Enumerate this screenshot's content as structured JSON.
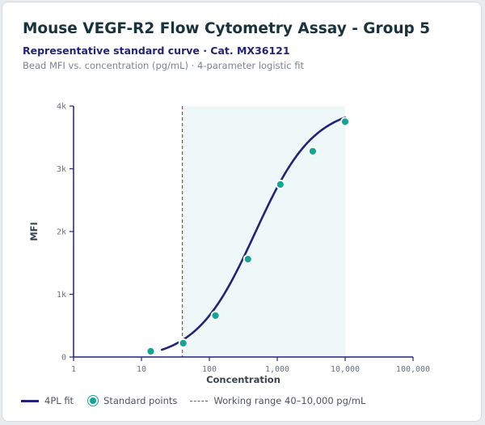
{
  "header": {
    "title": "Mouse VEGF-R2 Flow Cytometry Assay - Group 5",
    "subtitle": "Representative standard curve · Cat. MX36121",
    "caption": "Bead MFI vs. concentration (pg/mL) · 4-parameter logistic fit"
  },
  "chart_data": {
    "type": "scatter",
    "xlabel": "Concentration",
    "ylabel": "MFI",
    "x_scale": "log",
    "xlim": [
      1,
      100000
    ],
    "ylim": [
      0,
      4000
    ],
    "x_ticks": [
      1,
      10,
      100,
      1000,
      10000,
      100000
    ],
    "x_tick_labels": [
      "1",
      "10",
      "100",
      "1,000",
      "10,000",
      "100,000"
    ],
    "y_ticks": [
      0,
      1000,
      2000,
      3000,
      4000
    ],
    "y_tick_labels": [
      "0",
      "1k",
      "2k",
      "3k",
      "4k"
    ],
    "series": [
      {
        "name": "Standard points",
        "kind": "points",
        "color": "#12a596",
        "x": [
          13.7,
          41.2,
          123,
          370,
          1111,
          3333,
          10000
        ],
        "y": [
          90,
          220,
          660,
          1560,
          2750,
          3280,
          3750
        ]
      },
      {
        "name": "4PL fit",
        "kind": "fit",
        "color": "#23237a",
        "model": "4PL",
        "x_range": [
          20,
          10000
        ],
        "params": {
          "bottom": -50,
          "top": 4000,
          "ec50": 470,
          "hill": 1.0
        }
      }
    ],
    "working_range": {
      "label": "Working range 40–10,000 pg/mL",
      "from": 40,
      "to": 10000,
      "color": "#c0392b",
      "shade_color": "#eef8f8"
    },
    "grid": false,
    "legend_position": "bottom-left"
  }
}
